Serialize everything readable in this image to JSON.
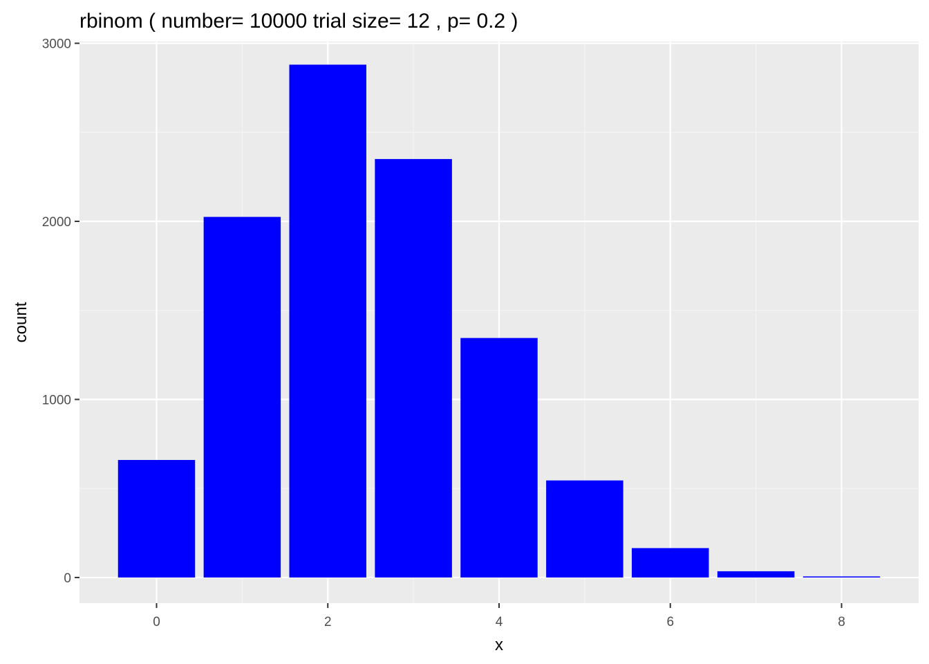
{
  "chart_data": {
    "type": "bar",
    "title": "rbinom ( number= 10000 trial size= 12 , p= 0.2 )",
    "xlabel": "x",
    "ylabel": "count",
    "x": [
      0,
      1,
      2,
      3,
      4,
      5,
      6,
      7,
      8
    ],
    "values": [
      660,
      2025,
      2880,
      2350,
      1345,
      545,
      165,
      35,
      6
    ],
    "xlim": [
      -0.9,
      8.9
    ],
    "ylim": [
      -144,
      3010
    ],
    "xticks": [
      0,
      2,
      4,
      6,
      8
    ],
    "xtick_labels": [
      "0",
      "2",
      "4",
      "6",
      "8"
    ],
    "yticks": [
      0,
      1000,
      2000,
      3000
    ],
    "ytick_labels": [
      "0",
      "1000",
      "2000",
      "3000"
    ],
    "grid": true,
    "legend": "none",
    "colors": {
      "bar_fill": "#0000ff",
      "panel_background": "#ebebeb",
      "grid_major": "#ffffff",
      "grid_minor": "#f5f5f5",
      "tick_text": "#4d4d4d",
      "tick_mark": "#333333"
    }
  }
}
